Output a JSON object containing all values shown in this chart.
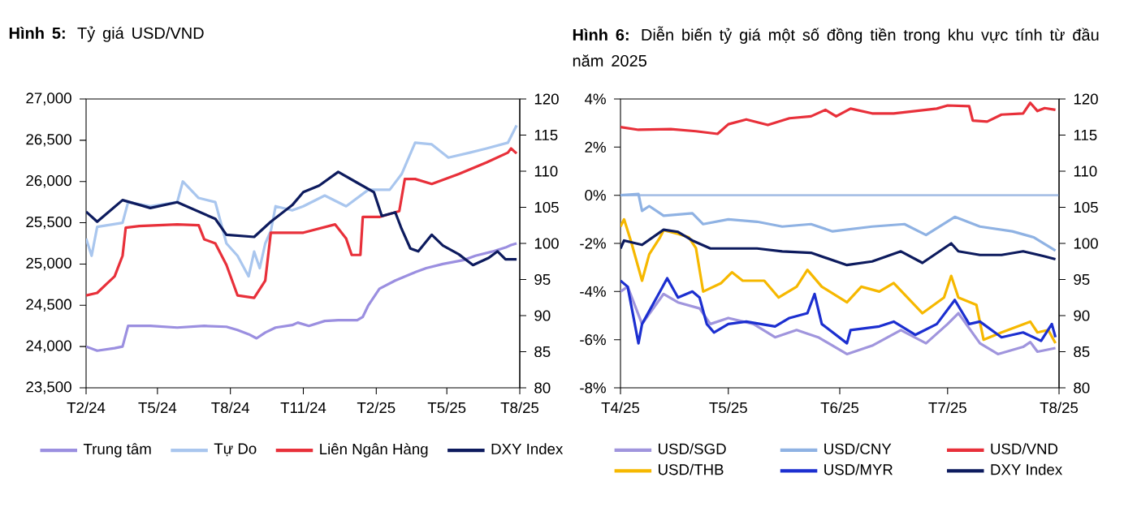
{
  "chart_data": [
    {
      "type": "line",
      "title": "**Hình 5:** Tỷ giá USD/VND",
      "xlim": [
        "2024-02-01",
        "2025-08-01"
      ],
      "xticks": [
        {
          "value": "2024-02-01",
          "label": "T2/24"
        },
        {
          "value": "2024-05-01",
          "label": "T5/24"
        },
        {
          "value": "2024-08-01",
          "label": "T8/24"
        },
        {
          "value": "2024-11-01",
          "label": "T11/24"
        },
        {
          "value": "2025-02-01",
          "label": "T2/25"
        },
        {
          "value": "2025-05-01",
          "label": "T5/25"
        },
        {
          "value": "2025-08-01",
          "label": "T8/25"
        }
      ],
      "ylim": [
        23500,
        27000
      ],
      "yticks": [
        {
          "value": 23500,
          "label": "23,500"
        },
        {
          "value": 24000,
          "label": "24,000"
        },
        {
          "value": 24500,
          "label": "24,500"
        },
        {
          "value": 25000,
          "label": "25,000"
        },
        {
          "value": 25500,
          "label": "25,500"
        },
        {
          "value": 26000,
          "label": "26,000"
        },
        {
          "value": 26500,
          "label": "26,500"
        },
        {
          "value": 27000,
          "label": "27,000"
        }
      ],
      "y2lim": [
        80,
        120
      ],
      "y2ticks": [
        80,
        85,
        90,
        95,
        100,
        105,
        110,
        115,
        120
      ],
      "legend": "bottom",
      "marker": "none",
      "line_style": "solid",
      "series": [
        {
          "name": "Trung tâm",
          "color": "#9b8fe0",
          "x": [
            "2024-02-01",
            "2024-02-15",
            "2024-03-08",
            "2024-03-18",
            "2024-03-25",
            "2024-04-22",
            "2024-05-26",
            "2024-06-29",
            "2024-07-27",
            "2024-08-10",
            "2024-08-24",
            "2024-09-03",
            "2024-09-14",
            "2024-09-27",
            "2024-10-18",
            "2024-10-25",
            "2024-11-08",
            "2024-11-28",
            "2024-12-15",
            "2025-01-08",
            "2025-01-15",
            "2025-01-22",
            "2025-02-05",
            "2025-02-25",
            "2025-03-22",
            "2025-04-05",
            "2025-04-26",
            "2025-05-23",
            "2025-06-06",
            "2025-06-27",
            "2025-07-14",
            "2025-07-21",
            "2025-07-28"
          ],
          "values": [
            24000,
            23950,
            23980,
            24000,
            24250,
            24250,
            24230,
            24250,
            24240,
            24200,
            24150,
            24100,
            24170,
            24230,
            24260,
            24290,
            24250,
            24310,
            24320,
            24320,
            24360,
            24500,
            24700,
            24800,
            24900,
            24950,
            25000,
            25050,
            25100,
            25150,
            25200,
            25230,
            25250
          ]
        },
        {
          "name": "Tự Do",
          "color": "#a9c6ee",
          "x": [
            "2024-02-01",
            "2024-02-08",
            "2024-02-15",
            "2024-03-18",
            "2024-03-25",
            "2024-04-22",
            "2024-05-26",
            "2024-06-02",
            "2024-06-22",
            "2024-07-13",
            "2024-07-27",
            "2024-08-10",
            "2024-08-24",
            "2024-08-31",
            "2024-09-07",
            "2024-09-14",
            "2024-09-21",
            "2024-09-27",
            "2024-10-18",
            "2024-11-01",
            "2024-11-28",
            "2024-12-25",
            "2025-01-22",
            "2025-02-18",
            "2025-03-05",
            "2025-03-22",
            "2025-04-12",
            "2025-05-03",
            "2025-05-30",
            "2025-06-20",
            "2025-07-17",
            "2025-07-28"
          ],
          "values": [
            25310,
            25100,
            25450,
            25500,
            25750,
            25700,
            25750,
            26000,
            25800,
            25750,
            25250,
            25100,
            24850,
            25150,
            24950,
            25250,
            25400,
            25700,
            25650,
            25700,
            25830,
            25700,
            25900,
            25900,
            26090,
            26470,
            26450,
            26290,
            26350,
            26400,
            26470,
            26680
          ]
        },
        {
          "name": "Liên Ngân Hàng",
          "color": "#e8303a",
          "x": [
            "2024-02-01",
            "2024-02-15",
            "2024-02-28",
            "2024-03-08",
            "2024-03-18",
            "2024-03-22",
            "2024-04-08",
            "2024-05-26",
            "2024-06-22",
            "2024-06-29",
            "2024-07-13",
            "2024-07-27",
            "2024-08-10",
            "2024-08-31",
            "2024-09-14",
            "2024-09-21",
            "2024-10-04",
            "2024-11-01",
            "2024-12-11",
            "2024-12-25",
            "2025-01-01",
            "2025-01-12",
            "2025-01-15",
            "2025-02-05",
            "2025-03-02",
            "2025-03-09",
            "2025-03-22",
            "2025-04-12",
            "2025-05-16",
            "2025-06-20",
            "2025-07-17",
            "2025-07-21",
            "2025-07-28"
          ],
          "values": [
            24620,
            24650,
            24770,
            24850,
            25100,
            25440,
            25460,
            25480,
            25470,
            25300,
            25250,
            24990,
            24620,
            24590,
            24800,
            25380,
            25380,
            25380,
            25480,
            25310,
            25110,
            25110,
            25570,
            25570,
            25640,
            26030,
            26030,
            25970,
            26090,
            26230,
            26350,
            26400,
            26340
          ]
        },
        {
          "name": "DXY Index",
          "color": "#0d1b5e",
          "axis": "y2",
          "x": [
            "2024-02-01",
            "2024-02-15",
            "2024-03-18",
            "2024-04-22",
            "2024-05-26",
            "2024-07-13",
            "2024-07-27",
            "2024-08-31",
            "2024-09-21",
            "2024-10-18",
            "2024-11-01",
            "2024-11-21",
            "2024-12-15",
            "2025-01-08",
            "2025-01-29",
            "2025-02-08",
            "2025-02-25",
            "2025-03-05",
            "2025-03-16",
            "2025-03-26",
            "2025-04-12",
            "2025-04-26",
            "2025-05-16",
            "2025-06-03",
            "2025-06-23",
            "2025-07-04",
            "2025-07-14",
            "2025-07-28"
          ],
          "values": [
            104.4,
            103.0,
            106.0,
            104.9,
            105.7,
            103.4,
            101.2,
            100.9,
            103.0,
            105.3,
            107.1,
            108.0,
            109.9,
            108.4,
            107.1,
            103.8,
            104.3,
            102.0,
            99.3,
            98.9,
            101.2,
            99.7,
            98.5,
            97.0,
            98.0,
            98.9,
            97.8,
            97.8
          ]
        }
      ]
    },
    {
      "type": "line",
      "title": "**Hình 6:** Diễn biến tỷ giá một số đồng tiền trong khu vực tính từ đầu năm 2025",
      "xlim": [
        "2025-04-01",
        "2025-08-01"
      ],
      "xticks": [
        {
          "value": "2025-04-01",
          "label": "T4/25"
        },
        {
          "value": "2025-05-01",
          "label": "T5/25"
        },
        {
          "value": "2025-06-01",
          "label": "T6/25"
        },
        {
          "value": "2025-07-01",
          "label": "T7/25"
        },
        {
          "value": "2025-08-01",
          "label": "T8/25"
        }
      ],
      "ylim": [
        -8,
        4
      ],
      "yticks": [
        {
          "value": -8,
          "label": "-8%"
        },
        {
          "value": -6,
          "label": "-6%"
        },
        {
          "value": -4,
          "label": "-4%"
        },
        {
          "value": -2,
          "label": "-2%"
        },
        {
          "value": 0,
          "label": "0%"
        },
        {
          "value": 2,
          "label": "2%"
        },
        {
          "value": 4,
          "label": "4%"
        }
      ],
      "y2lim": [
        80,
        120
      ],
      "y2ticks": [
        80,
        85,
        90,
        95,
        100,
        105,
        110,
        115,
        120
      ],
      "legend": "bottom",
      "marker": "none",
      "line_style": "solid",
      "ref_lines": [
        {
          "axis": "y",
          "value": 0,
          "color": "#a9c1e6"
        }
      ],
      "series": [
        {
          "name": "USD/SGD",
          "color": "#a095dd",
          "x": [
            "2025-04-01",
            "2025-04-03",
            "2025-04-07",
            "2025-04-13",
            "2025-04-17",
            "2025-04-23",
            "2025-04-26",
            "2025-05-01",
            "2025-05-08",
            "2025-05-14",
            "2025-05-20",
            "2025-05-26",
            "2025-06-03",
            "2025-06-10",
            "2025-06-18",
            "2025-06-25",
            "2025-07-01",
            "2025-07-04",
            "2025-07-10",
            "2025-07-15",
            "2025-07-22",
            "2025-07-24",
            "2025-07-26",
            "2025-07-31"
          ],
          "values": [
            -4.0,
            -3.8,
            -5.35,
            -4.1,
            -4.45,
            -4.7,
            -5.35,
            -5.1,
            -5.35,
            -5.9,
            -5.6,
            -5.9,
            -6.6,
            -6.25,
            -5.6,
            -6.15,
            -5.35,
            -4.9,
            -6.15,
            -6.6,
            -6.3,
            -6.1,
            -6.5,
            -6.35
          ]
        },
        {
          "name": "USD/CNY",
          "color": "#8fb2e3",
          "x": [
            "2025-04-01",
            "2025-04-06",
            "2025-04-07",
            "2025-04-09",
            "2025-04-13",
            "2025-04-21",
            "2025-04-24",
            "2025-05-01",
            "2025-05-09",
            "2025-05-16",
            "2025-05-24",
            "2025-05-30",
            "2025-06-10",
            "2025-06-19",
            "2025-06-25",
            "2025-07-03",
            "2025-07-10",
            "2025-07-19",
            "2025-07-25",
            "2025-07-31"
          ],
          "values": [
            0.0,
            0.05,
            -0.65,
            -0.45,
            -0.85,
            -0.75,
            -1.2,
            -1.0,
            -1.1,
            -1.3,
            -1.2,
            -1.5,
            -1.3,
            -1.2,
            -1.65,
            -0.9,
            -1.3,
            -1.5,
            -1.75,
            -2.3
          ]
        },
        {
          "name": "USD/VND",
          "color": "#e8303a",
          "x": [
            "2025-04-01",
            "2025-04-06",
            "2025-04-15",
            "2025-04-22",
            "2025-04-28",
            "2025-05-01",
            "2025-05-06",
            "2025-05-12",
            "2025-05-18",
            "2025-05-24",
            "2025-05-28",
            "2025-05-31",
            "2025-06-04",
            "2025-06-10",
            "2025-06-16",
            "2025-06-22",
            "2025-06-28",
            "2025-07-01",
            "2025-07-07",
            "2025-07-08",
            "2025-07-12",
            "2025-07-16",
            "2025-07-22",
            "2025-07-24",
            "2025-07-26",
            "2025-07-28",
            "2025-07-31"
          ],
          "values": [
            2.83,
            2.72,
            2.75,
            2.66,
            2.55,
            2.95,
            3.15,
            2.92,
            3.2,
            3.28,
            3.55,
            3.28,
            3.6,
            3.4,
            3.4,
            3.5,
            3.6,
            3.73,
            3.7,
            3.1,
            3.06,
            3.35,
            3.4,
            3.84,
            3.5,
            3.62,
            3.55
          ]
        },
        {
          "name": "USD/THB",
          "color": "#f6b800",
          "x": [
            "2025-04-01",
            "2025-04-02",
            "2025-04-04",
            "2025-04-07",
            "2025-04-09",
            "2025-04-12",
            "2025-04-13",
            "2025-04-17",
            "2025-04-20",
            "2025-04-22",
            "2025-04-24",
            "2025-04-29",
            "2025-05-02",
            "2025-05-05",
            "2025-05-11",
            "2025-05-15",
            "2025-05-20",
            "2025-05-23",
            "2025-05-27",
            "2025-06-03",
            "2025-06-07",
            "2025-06-12",
            "2025-06-16",
            "2025-06-24",
            "2025-06-30",
            "2025-07-02",
            "2025-07-04",
            "2025-07-09",
            "2025-07-11",
            "2025-07-16",
            "2025-07-24",
            "2025-07-26",
            "2025-07-29",
            "2025-07-31"
          ],
          "values": [
            -1.3,
            -1.0,
            -1.95,
            -3.55,
            -2.45,
            -1.75,
            -1.45,
            -1.6,
            -1.75,
            -2.2,
            -4.0,
            -3.65,
            -3.2,
            -3.55,
            -3.55,
            -4.25,
            -3.8,
            -3.1,
            -3.8,
            -4.45,
            -3.8,
            -4.0,
            -3.65,
            -4.9,
            -4.25,
            -3.35,
            -4.25,
            -4.55,
            -6.0,
            -5.7,
            -5.25,
            -5.7,
            -5.6,
            -6.15
          ]
        },
        {
          "name": "USD/MYR",
          "color": "#1c2fd0",
          "x": [
            "2025-04-01",
            "2025-04-03",
            "2025-04-06",
            "2025-04-07",
            "2025-04-12",
            "2025-04-14",
            "2025-04-17",
            "2025-04-21",
            "2025-04-23",
            "2025-04-25",
            "2025-04-27",
            "2025-05-01",
            "2025-05-06",
            "2025-05-14",
            "2025-05-18",
            "2025-05-23",
            "2025-05-25",
            "2025-05-27",
            "2025-06-03",
            "2025-06-04",
            "2025-06-12",
            "2025-06-16",
            "2025-06-22",
            "2025-06-28",
            "2025-07-03",
            "2025-07-07",
            "2025-07-10",
            "2025-07-16",
            "2025-07-22",
            "2025-07-27",
            "2025-07-30",
            "2025-07-31"
          ],
          "values": [
            -3.55,
            -3.8,
            -6.15,
            -5.35,
            -4.0,
            -3.45,
            -4.25,
            -4.0,
            -4.25,
            -5.35,
            -5.7,
            -5.35,
            -5.25,
            -5.45,
            -5.1,
            -4.9,
            -4.1,
            -5.35,
            -6.15,
            -5.6,
            -5.45,
            -5.25,
            -5.8,
            -5.35,
            -4.35,
            -5.35,
            -5.25,
            -5.9,
            -5.7,
            -6.05,
            -5.35,
            -5.9
          ]
        },
        {
          "name": "DXY Index",
          "color": "#0d1b5e",
          "axis": "y2",
          "x": [
            "2025-04-01",
            "2025-04-02",
            "2025-04-07",
            "2025-04-13",
            "2025-04-17",
            "2025-04-21",
            "2025-04-26",
            "2025-05-01",
            "2025-05-09",
            "2025-05-16",
            "2025-05-24",
            "2025-06-03",
            "2025-06-10",
            "2025-06-18",
            "2025-06-24",
            "2025-07-02",
            "2025-07-04",
            "2025-07-10",
            "2025-07-16",
            "2025-07-22",
            "2025-07-28",
            "2025-07-31"
          ],
          "values": [
            99.3,
            100.4,
            99.8,
            101.9,
            101.6,
            100.4,
            99.3,
            99.3,
            99.3,
            98.9,
            98.7,
            97.0,
            97.5,
            98.9,
            97.3,
            100.0,
            98.9,
            98.4,
            98.4,
            98.9,
            98.2,
            97.8
          ]
        }
      ]
    }
  ]
}
